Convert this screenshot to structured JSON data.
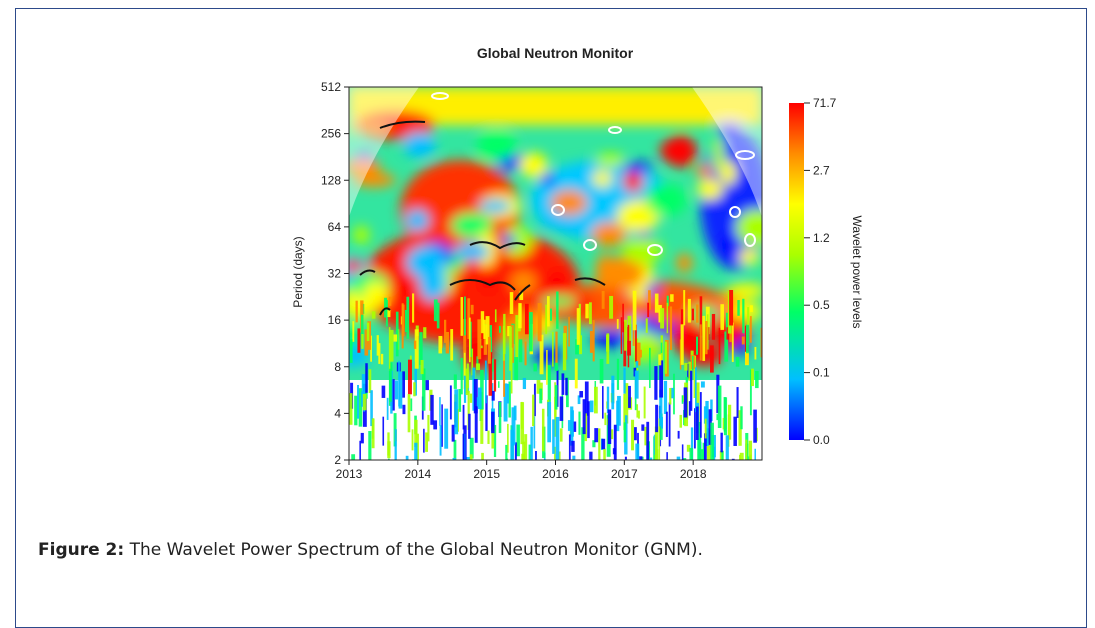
{
  "chart_data": {
    "type": "heatmap",
    "title": "Global Neutron Monitor",
    "xlabel": "",
    "ylabel": "Period (days)",
    "x_ticks": [
      "2013",
      "2014",
      "2015",
      "2016",
      "2017",
      "2018"
    ],
    "x_range": [
      2013,
      2019
    ],
    "y_ticks": [
      "2",
      "4",
      "8",
      "16",
      "32",
      "64",
      "128",
      "256",
      "512"
    ],
    "y_scale": "log2",
    "y_range": [
      2,
      512
    ],
    "colorbar": {
      "label": "Wavelet power levels",
      "ticks": [
        "71.7",
        "2.7",
        "1.2",
        "0.5",
        "0.1",
        "0.0"
      ],
      "colors": [
        "#0000ff",
        "#00bfff",
        "#00ff66",
        "#aaff00",
        "#ffff00",
        "#ff8c00",
        "#ff0000"
      ]
    }
  },
  "caption": {
    "label": "Figure 2:",
    "text": " The Wavelet Power Spectrum of the Global Neutron Monitor (GNM)."
  }
}
